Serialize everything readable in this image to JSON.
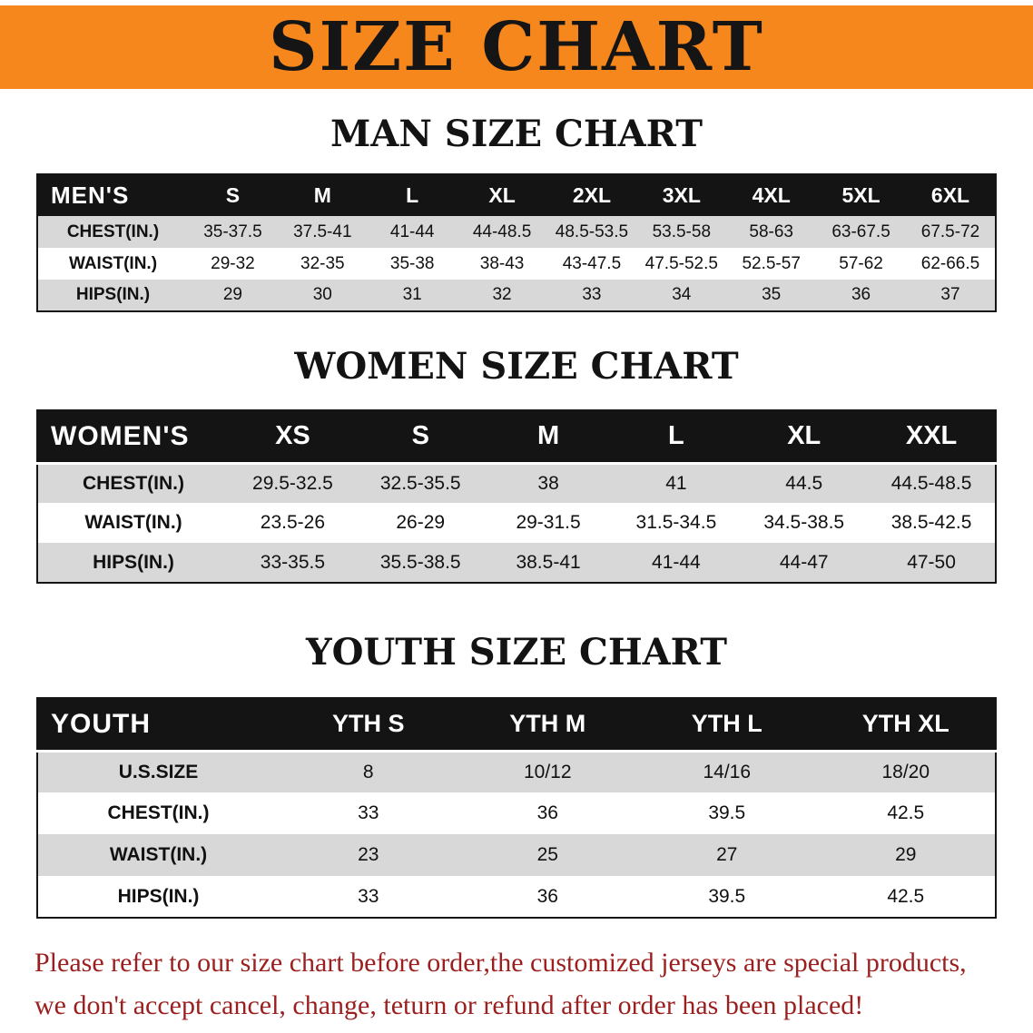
{
  "banner": {
    "title": "SIZE CHART",
    "bg_color": "#f6871d"
  },
  "sections": [
    {
      "id": "men",
      "heading": "MAN SIZE CHART",
      "table": {
        "corner_label": "MEN'S",
        "columns": [
          "S",
          "M",
          "L",
          "XL",
          "2XL",
          "3XL",
          "4XL",
          "5XL",
          "6XL"
        ],
        "rows": [
          {
            "label": "CHEST(IN.)",
            "values": [
              "35-37.5",
              "37.5-41",
              "41-44",
              "44-48.5",
              "48.5-53.5",
              "53.5-58",
              "58-63",
              "63-67.5",
              "67.5-72"
            ]
          },
          {
            "label": "WAIST(IN.)",
            "values": [
              "29-32",
              "32-35",
              "35-38",
              "38-43",
              "43-47.5",
              "47.5-52.5",
              "52.5-57",
              "57-62",
              "62-66.5"
            ]
          },
          {
            "label": "HIPS(IN.)",
            "values": [
              "29",
              "30",
              "31",
              "32",
              "33",
              "34",
              "35",
              "36",
              "37"
            ]
          }
        ]
      }
    },
    {
      "id": "women",
      "heading": "WOMEN SIZE CHART",
      "table": {
        "corner_label": "WOMEN'S",
        "columns": [
          "XS",
          "S",
          "M",
          "L",
          "XL",
          "XXL"
        ],
        "rows": [
          {
            "label": "CHEST(IN.)",
            "values": [
              "29.5-32.5",
              "32.5-35.5",
              "38",
              "41",
              "44.5",
              "44.5-48.5"
            ]
          },
          {
            "label": "WAIST(IN.)",
            "values": [
              "23.5-26",
              "26-29",
              "29-31.5",
              "31.5-34.5",
              "34.5-38.5",
              "38.5-42.5"
            ]
          },
          {
            "label": "HIPS(IN.)",
            "values": [
              "33-35.5",
              "35.5-38.5",
              "38.5-41",
              "41-44",
              "44-47",
              "47-50"
            ]
          }
        ]
      }
    },
    {
      "id": "youth",
      "heading": "YOUTH SIZE CHART",
      "table": {
        "corner_label": "YOUTH",
        "columns": [
          "YTH S",
          "YTH M",
          "YTH L",
          "YTH XL"
        ],
        "rows": [
          {
            "label": "U.S.SIZE",
            "values": [
              "8",
              "10/12",
              "14/16",
              "18/20"
            ]
          },
          {
            "label": "CHEST(IN.)",
            "values": [
              "33",
              "36",
              "39.5",
              "42.5"
            ]
          },
          {
            "label": "WAIST(IN.)",
            "values": [
              "23",
              "25",
              "27",
              "29"
            ]
          },
          {
            "label": "HIPS(IN.)",
            "values": [
              "33",
              "36",
              "39.5",
              "42.5"
            ]
          }
        ]
      }
    }
  ],
  "footer": {
    "line1": "Please refer to our size chart before order,the customized jerseys are special products,",
    "line2": "we don't accept cancel, change, teturn or refund after order has been placed!",
    "text_color": "#9c1f1f"
  }
}
